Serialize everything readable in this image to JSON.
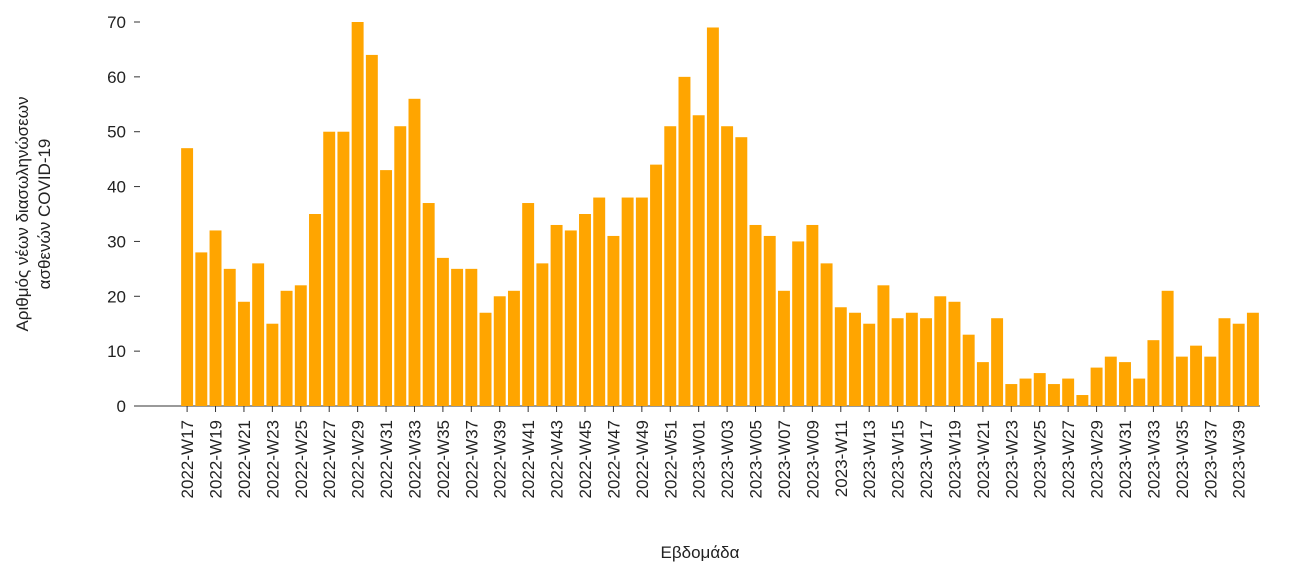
{
  "chart_data": {
    "type": "bar",
    "ylabel": [
      "Αριθμός νέων διασωληνώσεων",
      "ασθενών COVID-19"
    ],
    "xlabel": "Εβδομάδα",
    "categories": [
      "2022-W17",
      null,
      "2022-W19",
      null,
      "2022-W21",
      null,
      "2022-W23",
      null,
      "2022-W25",
      null,
      "2022-W27",
      null,
      "2022-W29",
      null,
      "2022-W31",
      null,
      "2022-W33",
      null,
      "2022-W35",
      null,
      "2022-W37",
      null,
      "2022-W39",
      null,
      "2022-W41",
      null,
      "2022-W43",
      null,
      "2022-W45",
      null,
      "2022-W47",
      null,
      "2022-W49",
      null,
      "2022-W51",
      null,
      "2023-W01",
      null,
      "2023-W03",
      null,
      "2023-W05",
      null,
      "2023-W07",
      null,
      "2023-W09",
      null,
      "2023-W11",
      null,
      "2023-W13",
      null,
      "2023-W15",
      null,
      "2023-W17",
      null,
      "2023-W19",
      null,
      "2023-W21",
      null,
      "2023-W23",
      null,
      "2023-W25",
      null,
      "2023-W27",
      null,
      "2023-W29",
      null,
      "2023-W31",
      null,
      "2023-W33",
      null,
      "2023-W35",
      null,
      "2023-W37",
      null,
      "2023-W39",
      null
    ],
    "values": [
      47,
      28,
      32,
      25,
      19,
      26,
      15,
      21,
      22,
      35,
      50,
      50,
      70,
      64,
      43,
      51,
      56,
      37,
      27,
      25,
      25,
      17,
      20,
      21,
      37,
      26,
      33,
      32,
      35,
      38,
      31,
      38,
      38,
      44,
      51,
      60,
      53,
      69,
      51,
      49,
      33,
      31,
      21,
      30,
      33,
      26,
      18,
      17,
      15,
      22,
      16,
      17,
      16,
      20,
      19,
      13,
      8,
      16,
      4,
      5,
      6,
      4,
      5,
      2,
      7,
      9,
      8,
      5,
      12,
      21,
      9,
      11,
      9,
      16,
      15,
      17
    ],
    "color": "#ffa500",
    "ylim": [
      0,
      70
    ],
    "yticks": [
      0,
      10,
      20,
      30,
      40,
      50,
      60,
      70
    ],
    "grid": false
  }
}
